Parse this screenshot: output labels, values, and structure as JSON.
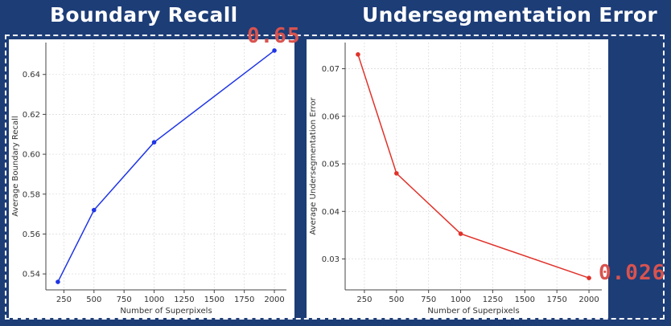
{
  "titles": {
    "left": "Boundary Recall",
    "right": "Undersegmentation Error"
  },
  "callouts": {
    "left": "0.65",
    "right": "0.026"
  },
  "chart_data": [
    {
      "type": "line",
      "title": "Boundary Recall",
      "xlabel": "Number of Superpixels",
      "ylabel": "Average Boundary Recall",
      "x": [
        200,
        500,
        1000,
        2000
      ],
      "values": [
        0.536,
        0.572,
        0.606,
        0.652
      ],
      "xlim": [
        100,
        2100
      ],
      "ylim": [
        0.532,
        0.656
      ],
      "xticks": [
        250,
        500,
        750,
        1000,
        1250,
        1500,
        1750,
        2000
      ],
      "yticks": [
        0.54,
        0.56,
        0.58,
        0.6,
        0.62,
        0.64
      ],
      "ytick_labels": [
        "0.54",
        "0.56",
        "0.58",
        "0.60",
        "0.62",
        "0.64"
      ],
      "color": "#1f35e6",
      "grid": true
    },
    {
      "type": "line",
      "title": "Undersegmentation Error",
      "xlabel": "Number of Superpixels",
      "ylabel": "Average Undersegmentation Error",
      "x": [
        200,
        500,
        1000,
        2000
      ],
      "values": [
        0.073,
        0.048,
        0.0353,
        0.026
      ],
      "xlim": [
        100,
        2100
      ],
      "ylim": [
        0.0235,
        0.0755
      ],
      "xticks": [
        250,
        500,
        750,
        1000,
        1250,
        1500,
        1750,
        2000
      ],
      "yticks": [
        0.03,
        0.04,
        0.05,
        0.06,
        0.07
      ],
      "ytick_labels": [
        "0.03",
        "0.04",
        "0.05",
        "0.06",
        "0.07"
      ],
      "color": "#e0322a",
      "grid": true
    }
  ]
}
